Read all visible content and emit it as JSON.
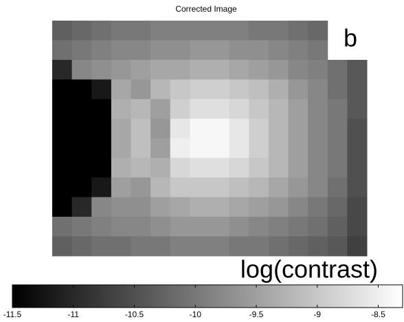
{
  "chart_data": {
    "type": "heatmap",
    "title": "Corrected Image",
    "panel_label": "b",
    "colorbar_label": "log(contrast)",
    "colormap": "gray",
    "clim": [
      -11.5,
      -8.3
    ],
    "cticks": [
      -11.5,
      -11,
      -10.5,
      -10,
      -9.5,
      -9,
      -8.5
    ],
    "z": [
      [
        -10.3,
        -10.2,
        -10.1,
        -10.0,
        -10.0,
        -9.9,
        -9.9,
        -9.9,
        -9.9,
        -9.9,
        -10.0,
        -10.0,
        -10.1,
        -10.2,
        null,
        null
      ],
      [
        -10.1,
        -10.0,
        -9.9,
        -9.8,
        -9.8,
        -9.7,
        -9.7,
        -9.6,
        -9.6,
        -9.7,
        -9.7,
        -9.8,
        -9.9,
        -10.0,
        null,
        null
      ],
      [
        -11.0,
        -9.8,
        -9.7,
        -9.6,
        -9.5,
        -9.4,
        -9.4,
        -9.3,
        -9.3,
        -9.4,
        -9.5,
        -9.6,
        -9.8,
        -9.9,
        -10.1,
        -10.4
      ],
      [
        -11.5,
        -11.5,
        -11.2,
        -9.4,
        -9.6,
        -9.2,
        -9.0,
        -8.9,
        -8.9,
        -9.0,
        -9.1,
        -9.3,
        -9.6,
        -9.8,
        -10.1,
        -10.4
      ],
      [
        -11.5,
        -11.5,
        -11.5,
        -9.3,
        -9.2,
        -9.5,
        -8.9,
        -8.7,
        -8.7,
        -8.8,
        -9.0,
        -9.2,
        -9.5,
        -9.8,
        -10.0,
        -10.4
      ],
      [
        -11.5,
        -11.5,
        -11.5,
        -9.4,
        -9.1,
        -9.6,
        -8.6,
        -8.4,
        -8.4,
        -8.6,
        -8.9,
        -9.2,
        -9.5,
        -9.8,
        -10.0,
        -10.5
      ],
      [
        -11.5,
        -11.5,
        -11.5,
        -9.4,
        -9.1,
        -9.5,
        -8.5,
        -8.4,
        -8.4,
        -8.6,
        -8.9,
        -9.2,
        -9.5,
        -9.8,
        -10.0,
        -10.5
      ],
      [
        -11.5,
        -11.5,
        -11.5,
        -9.3,
        -9.2,
        -9.3,
        -8.8,
        -8.7,
        -8.7,
        -8.8,
        -9.0,
        -9.2,
        -9.5,
        -9.8,
        -10.0,
        -10.5
      ],
      [
        -11.5,
        -11.5,
        -11.2,
        -9.5,
        -9.6,
        -9.2,
        -9.0,
        -9.0,
        -9.0,
        -9.1,
        -9.2,
        -9.4,
        -9.6,
        -9.8,
        -10.1,
        -10.5
      ],
      [
        -11.5,
        -11.0,
        -9.8,
        -9.7,
        -9.7,
        -9.5,
        -9.4,
        -9.3,
        -9.3,
        -9.4,
        -9.5,
        -9.6,
        -9.8,
        -10.0,
        -10.2,
        -10.6
      ],
      [
        -10.1,
        -10.0,
        -9.9,
        -9.8,
        -9.8,
        -9.7,
        -9.6,
        -9.6,
        -9.6,
        -9.7,
        -9.8,
        -9.9,
        -10.0,
        -10.1,
        -10.3,
        -10.6
      ],
      [
        -10.3,
        -10.2,
        -10.1,
        -10.1,
        -10.0,
        -10.0,
        -9.9,
        -9.9,
        -9.9,
        -10.0,
        -10.0,
        -10.1,
        -10.2,
        -10.3,
        -10.4,
        -10.7
      ]
    ]
  }
}
